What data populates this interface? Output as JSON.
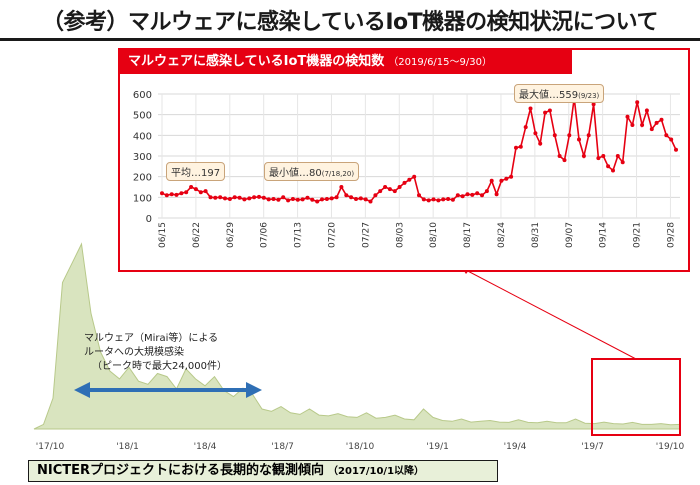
{
  "page": {
    "title": "（参考）マルウェアに感染しているIoT機器の検知状況について",
    "bottom_label": "NICTERプロジェクトにおける長期的な観測傾向",
    "bottom_label_sub": "（2017/10/1以降）",
    "annotation_lines": [
      "マルウェア（Mirai等）による",
      "ルータへの大規模感染",
      "（ピーク時で最大24,000件）"
    ],
    "colors": {
      "accent": "#e60012",
      "area_fill": "#d9e4bf",
      "area_stroke": "#b8c98a",
      "arrow": "#2f6fb5"
    }
  },
  "chart_data": [
    {
      "type": "area",
      "x_ticks": [
        "'17/10",
        "'18/1",
        "'18/4",
        "'18/7",
        "'18/10",
        "'19/1",
        "'19/4",
        "'19/7",
        "'19/10"
      ],
      "y_max": 24000,
      "values": [
        0,
        600,
        4000,
        19000,
        21500,
        24000,
        15000,
        10000,
        7500,
        6500,
        8000,
        6200,
        5800,
        7200,
        6800,
        5200,
        7800,
        6500,
        5600,
        6800,
        5000,
        4200,
        5300,
        4500,
        2600,
        2300,
        2900,
        2100,
        1900,
        2600,
        1800,
        1700,
        2000,
        1600,
        1500,
        2100,
        1400,
        1500,
        1800,
        1300,
        1200,
        2600,
        1500,
        1100,
        1000,
        1300,
        900,
        1000,
        1100,
        900,
        850,
        1200,
        850,
        800,
        1000,
        800,
        800,
        1300,
        750,
        700,
        900,
        700,
        650,
        850,
        600,
        600,
        700,
        550,
        600
      ],
      "highlight_range": [
        "'19/6",
        "'19/10"
      ]
    },
    {
      "type": "line",
      "title": "マルウェアに感染しているIoT機器の検知数",
      "subtitle": "（2019/6/15～9/30）",
      "x_ticks": [
        "06/15",
        "06/22",
        "06/29",
        "07/06",
        "07/13",
        "07/20",
        "07/27",
        "08/03",
        "08/10",
        "08/17",
        "08/24",
        "08/31",
        "09/07",
        "09/14",
        "09/21",
        "09/28"
      ],
      "ylim": [
        0,
        600
      ],
      "y_ticks": [
        0,
        100,
        200,
        300,
        400,
        500,
        600
      ],
      "grid": true,
      "series": [
        {
          "values": [
            120,
            110,
            115,
            112,
            120,
            125,
            150,
            140,
            125,
            130,
            100,
            98,
            100,
            95,
            92,
            100,
            98,
            90,
            95,
            100,
            102,
            98,
            90,
            92,
            88,
            100,
            85,
            92,
            88,
            90,
            98,
            88,
            80,
            90,
            92,
            95,
            100,
            150,
            110,
            100,
            92,
            95,
            90,
            80,
            110,
            130,
            150,
            140,
            130,
            150,
            170,
            185,
            200,
            110,
            90,
            85,
            90,
            85,
            90,
            92,
            88,
            110,
            105,
            115,
            112,
            120,
            110,
            130,
            180,
            115,
            180,
            190,
            200,
            340,
            345,
            440,
            530,
            410,
            360,
            510,
            520,
            400,
            300,
            280,
            400,
            580,
            380,
            300,
            400,
            550,
            290,
            300,
            250,
            230,
            300,
            270,
            490,
            450,
            560,
            450,
            520,
            430,
            460,
            475,
            400,
            380,
            330
          ],
          "color": "#e60012"
        }
      ],
      "callouts": [
        {
          "label": "平均…197"
        },
        {
          "label": "最小値…80",
          "note": "(7/18,20)"
        },
        {
          "label": "最大値…559",
          "note": "(9/23)"
        }
      ]
    }
  ]
}
